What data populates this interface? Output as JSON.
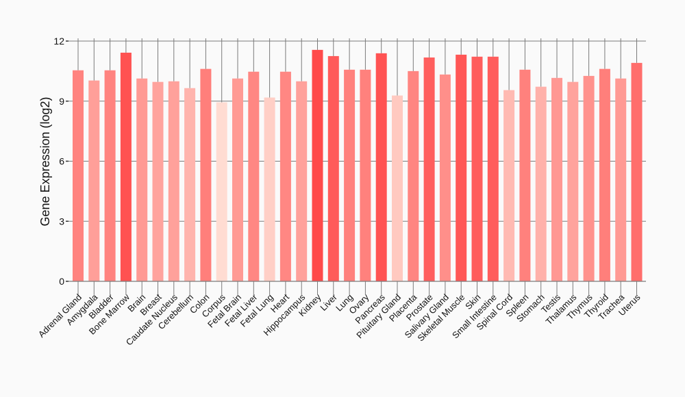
{
  "chart_data": {
    "type": "bar",
    "title": "",
    "xlabel": "",
    "ylabel": "Gene Expression (log2)",
    "ylim": [
      0,
      12
    ],
    "yticks": [
      0,
      3,
      6,
      9,
      12
    ],
    "grid": true,
    "categories": [
      "Adrenal Gland",
      "Amygdala",
      "Bladder",
      "Bone Marrow",
      "Brain",
      "Breast",
      "Caudate Nucleus",
      "Cerebellum",
      "Colon",
      "Corpus",
      "Fetal Brain",
      "Fetal Liver",
      "Fetal Lung",
      "Heart",
      "Hippocampus",
      "Kidney",
      "Liver",
      "Lung",
      "Ovary",
      "Pancreas",
      "Pituitary Gland",
      "Placenta",
      "Prostate",
      "Salivary Gland",
      "Skeletal Muscle",
      "Skin",
      "Small Intestine",
      "Spinal Cord",
      "Spleen",
      "Stomach",
      "Testis",
      "Thalamus",
      "Thymus",
      "Thyroid",
      "Trachea",
      "Uterus"
    ],
    "values": [
      10.54,
      10.03,
      10.54,
      11.42,
      10.13,
      9.96,
      9.99,
      9.65,
      10.61,
      8.94,
      10.13,
      10.47,
      9.18,
      10.47,
      9.99,
      11.56,
      11.25,
      10.57,
      10.57,
      11.39,
      9.28,
      10.5,
      11.18,
      10.33,
      11.32,
      11.22,
      11.22,
      9.55,
      10.57,
      9.72,
      10.16,
      9.96,
      10.26,
      10.61,
      10.13,
      10.91
    ],
    "color_low": "#ffdcd2",
    "color_high": "#ff4a4a"
  }
}
